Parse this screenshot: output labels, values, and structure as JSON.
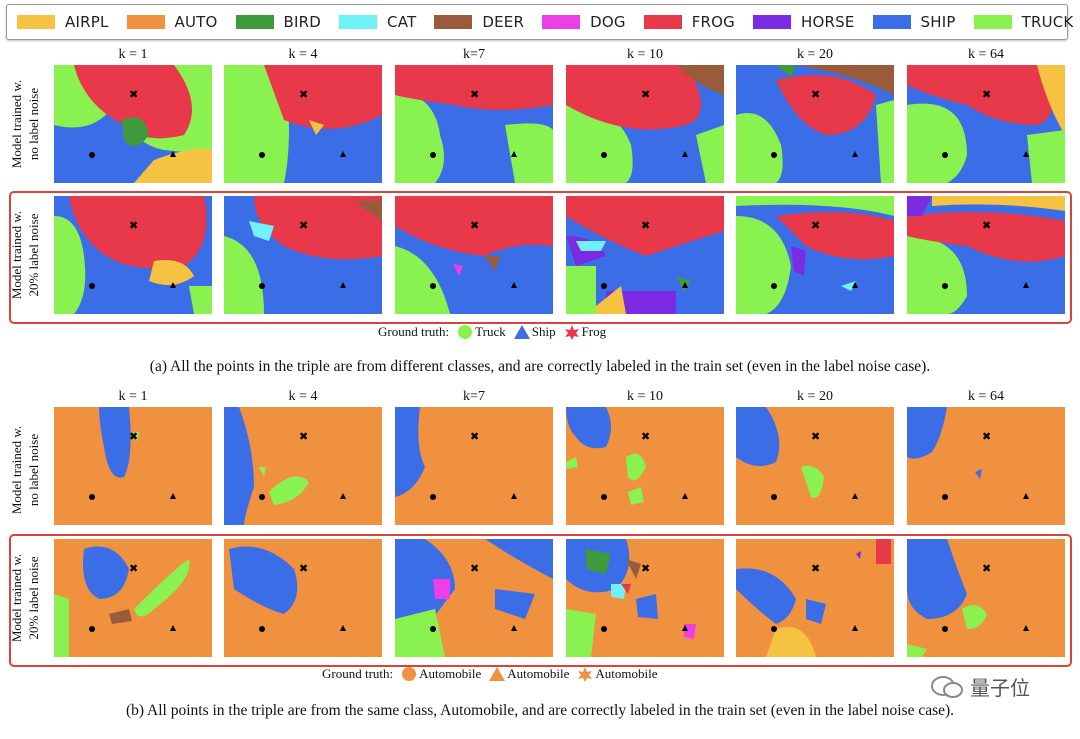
{
  "legend": [
    {
      "label": "AIRPL",
      "color": "#f5c242"
    },
    {
      "label": "AUTO",
      "color": "#f0913f"
    },
    {
      "label": "BIRD",
      "color": "#3e9a3c"
    },
    {
      "label": "CAT",
      "color": "#6ff1f7"
    },
    {
      "label": "DEER",
      "color": "#9a5b3a"
    },
    {
      "label": "DOG",
      "color": "#ee3fe6"
    },
    {
      "label": "FROG",
      "color": "#e8394a"
    },
    {
      "label": "HORSE",
      "color": "#7b2be2"
    },
    {
      "label": "SHIP",
      "color": "#3b6ee6"
    },
    {
      "label": "TRUCK",
      "color": "#8af250"
    }
  ],
  "k_labels": [
    "k = 1",
    "k = 4",
    "k=7",
    "k = 10",
    "k = 20",
    "k = 64"
  ],
  "row_labels": {
    "clean": [
      "Model trained w.",
      "no label noise"
    ],
    "noisy": [
      "Model trained w.",
      "20% label noise"
    ]
  },
  "section_a": {
    "ground_truth_label": "Ground truth:",
    "ground_truth": [
      {
        "marker": "circle",
        "label": "Truck",
        "color": "#8af250"
      },
      {
        "marker": "triangle",
        "label": "Ship",
        "color": "#3b6ee6"
      },
      {
        "marker": "star",
        "label": "Frog",
        "color": "#e8394a"
      }
    ],
    "caption": "(a) All the points in the triple are from different classes, and are correctly labeled in the train set (even in the label noise case)."
  },
  "section_b": {
    "ground_truth_label": "Ground truth:",
    "ground_truth": [
      {
        "marker": "circle",
        "label": "Automobile",
        "color": "#f0913f"
      },
      {
        "marker": "triangle",
        "label": "Automobile",
        "color": "#f0913f"
      },
      {
        "marker": "star",
        "label": "Automobile",
        "color": "#f0913f"
      }
    ],
    "caption": "(b) All points in the triple are from the same class, Automobile, and are correctly labeled in the train set (even in the label noise case)."
  },
  "watermark": "量子位"
}
